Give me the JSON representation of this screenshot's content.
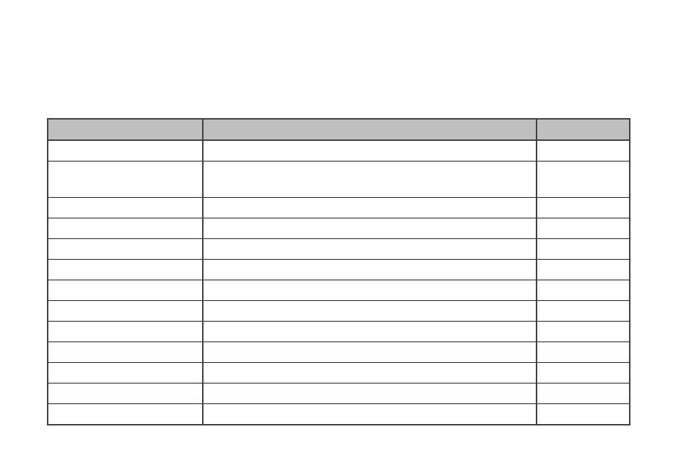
{
  "page": {
    "background": "#ffffff"
  },
  "table": {
    "colors": {
      "header_fill": "#bfbfbf",
      "border_strong": "#3e3e3e",
      "border_thin": "#1c1c1c"
    },
    "column_count": 3,
    "header": {
      "cells": [
        "",
        "",
        ""
      ]
    },
    "rows": [
      {
        "cells": [
          "",
          "",
          ""
        ]
      },
      {
        "cells": [
          "",
          "",
          ""
        ],
        "tall": true
      },
      {
        "cells": [
          "",
          "",
          ""
        ]
      },
      {
        "cells": [
          "",
          "",
          ""
        ]
      },
      {
        "cells": [
          "",
          "",
          ""
        ]
      },
      {
        "cells": [
          "",
          "",
          ""
        ]
      },
      {
        "cells": [
          "",
          "",
          ""
        ]
      },
      {
        "cells": [
          "",
          "",
          ""
        ]
      },
      {
        "cells": [
          "",
          "",
          ""
        ]
      },
      {
        "cells": [
          "",
          "",
          ""
        ]
      },
      {
        "cells": [
          "",
          "",
          ""
        ]
      },
      {
        "cells": [
          "",
          "",
          ""
        ]
      },
      {
        "cells": [
          "",
          "",
          ""
        ]
      }
    ]
  }
}
